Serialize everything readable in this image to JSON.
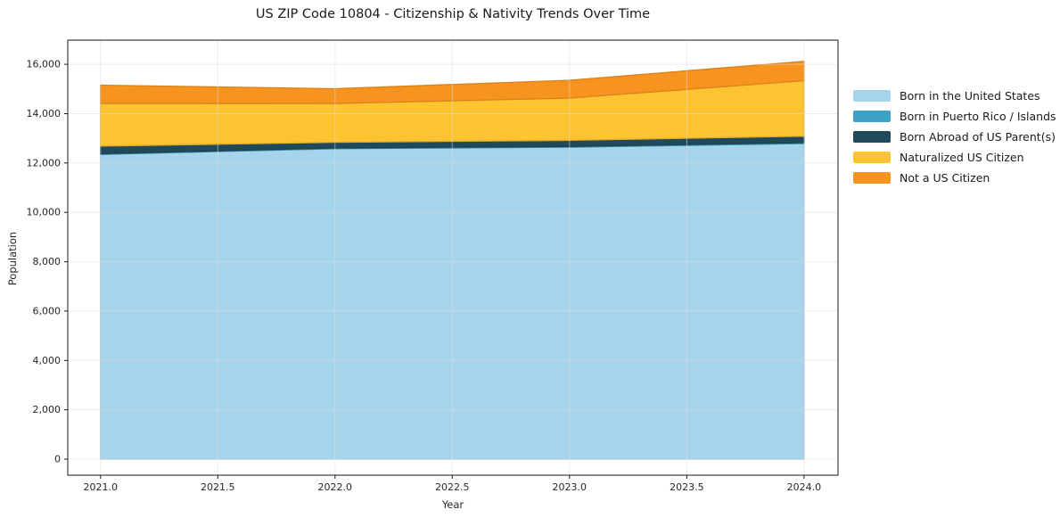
{
  "figure": {
    "background_color": "#ffffff",
    "plot_background_color": "#ffffff",
    "gridline_color": "#dcdcdc",
    "spine_color": "#1a1a1a"
  },
  "chart_data": {
    "type": "area",
    "stacked": true,
    "title": "US ZIP Code 10804 - Citizenship & Nativity Trends Over Time",
    "xlabel": "Year",
    "ylabel": "Population",
    "x": [
      2021,
      2022,
      2023,
      2024
    ],
    "series": [
      {
        "name": "Born in the United States",
        "color": "#a6d4ea",
        "values": [
          12350,
          12580,
          12640,
          12790
        ]
      },
      {
        "name": "Born in Puerto Rico / Islands",
        "color": "#3ea1c6",
        "values": [
          25,
          30,
          30,
          35
        ]
      },
      {
        "name": "Born Abroad of US Parent(s)",
        "color": "#204a5c",
        "values": [
          310,
          230,
          250,
          260
        ]
      },
      {
        "name": "Naturalized US Citizen",
        "color": "#fdc330",
        "values": [
          1730,
          1570,
          1710,
          2250
        ]
      },
      {
        "name": "Not a US Citizen",
        "color": "#f7941f",
        "values": [
          740,
          600,
          725,
          785
        ]
      }
    ],
    "totals_by_year": [
      15155,
      15010,
      15355,
      16120
    ],
    "x_ticks": {
      "values": [
        2021.0,
        2021.5,
        2022.0,
        2022.5,
        2023.0,
        2023.5,
        2024.0
      ],
      "labels": [
        "2021.0",
        "2021.5",
        "2022.0",
        "2022.5",
        "2023.0",
        "2023.5",
        "2024.0"
      ]
    },
    "y_ticks": {
      "values": [
        0,
        2000,
        4000,
        6000,
        8000,
        10000,
        12000,
        14000,
        16000
      ],
      "labels": [
        "0",
        "2,000",
        "4,000",
        "6,000",
        "8,000",
        "10,000",
        "12,000",
        "14,000",
        "16,000"
      ]
    },
    "xlim": [
      2020.86,
      2024.145
    ],
    "ylim": [
      -650,
      16980
    ],
    "grid": true,
    "legend_position": "outside-right"
  }
}
